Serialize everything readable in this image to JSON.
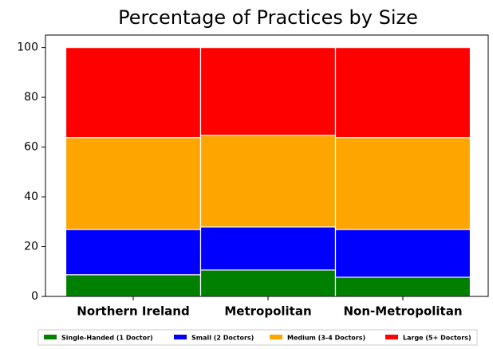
{
  "chart_data": {
    "type": "stacked-bar",
    "title": "Percentage of Practices by Size",
    "categories": [
      "Northern Ireland",
      "Metropolitan",
      "Non-Metropolitan"
    ],
    "series": [
      {
        "name": "Single-Handed (1 Doctor)",
        "color": "#008000",
        "values": [
          8.7,
          10.6,
          7.7
        ]
      },
      {
        "name": "Small (2 Doctors)",
        "color": "#0000ff",
        "values": [
          18.2,
          17.3,
          19.2
        ]
      },
      {
        "name": "Medium (3-4 Doctors)",
        "color": "#ffa500",
        "values": [
          36.9,
          36.8,
          36.9
        ]
      },
      {
        "name": "Large (5+ Doctors)",
        "color": "#ff0000",
        "values": [
          36.2,
          35.3,
          36.2
        ]
      }
    ],
    "ylim": [
      0,
      105
    ],
    "yticks": [
      0,
      20,
      40,
      60,
      80,
      100
    ],
    "grid": false,
    "legend": "bottom"
  }
}
